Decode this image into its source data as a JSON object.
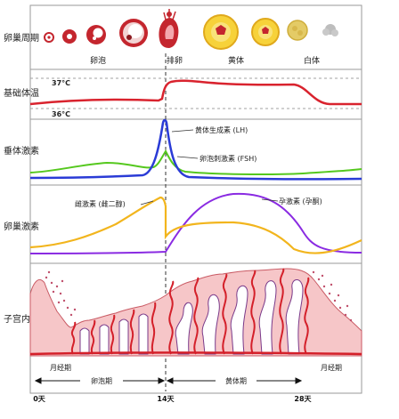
{
  "rows": {
    "ovary_cycle": "卵巢周期",
    "body_temp": "基础体温",
    "pituitary_hormones": "垂体激素",
    "ovarian_hormones": "卵巢激素",
    "endometrium": "子宫内膜"
  },
  "stages": {
    "follicle": "卵泡",
    "ovulation": "排卵",
    "corpus_luteum": "黄体",
    "corpus_albicans": "白体"
  },
  "temperature": {
    "high_label": "37°C",
    "low_label": "36°C"
  },
  "hormones": {
    "lh_label": "黄体生成素 (LH)",
    "fsh_label": "卵泡刺激素 (FSH)",
    "estrogen_label": "雌激素 (雌二醇)",
    "progesterone_label": "孕激素 (孕酮)"
  },
  "phases": {
    "menstrual_start": "月经期",
    "menstrual_end": "月经期",
    "follicular": "卵泡期",
    "luteal": "黄体期"
  },
  "days": {
    "d0": "0天",
    "d14": "14天",
    "d28": "28天"
  },
  "colors": {
    "temp_line": "#d9232e",
    "lh": "#2a3bd6",
    "fsh": "#55c81e",
    "estrogen": "#f2b51d",
    "progesterone": "#8a2be2",
    "endometrium_fill": "#f6c6c8",
    "vessel": "#d4202a",
    "gland_outline": "#7a3a8a",
    "follicle": "#c4262e",
    "corpus_luteum": "#f7d23a"
  }
}
